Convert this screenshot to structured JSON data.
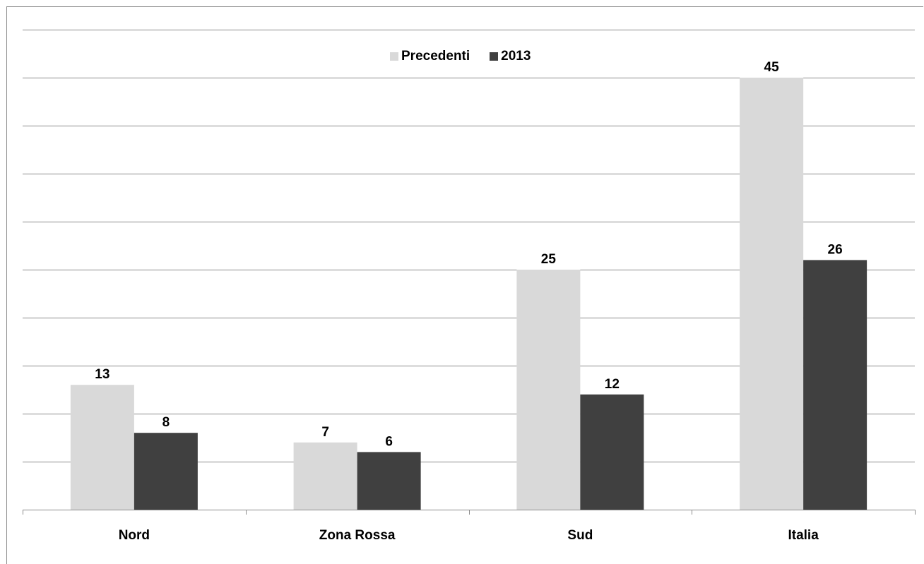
{
  "chart_data": {
    "type": "bar",
    "categories": [
      "Nord",
      "Zona Rossa",
      "Sud",
      "Italia"
    ],
    "series": [
      {
        "name": "Precedenti",
        "values": [
          13,
          7,
          25,
          45
        ],
        "color": "#d9d9d9"
      },
      {
        "name": "2013",
        "values": [
          8,
          6,
          12,
          26
        ],
        "color": "#404040"
      }
    ],
    "ylim": [
      0,
      50
    ],
    "gridlines": true,
    "legend": "top-center"
  }
}
